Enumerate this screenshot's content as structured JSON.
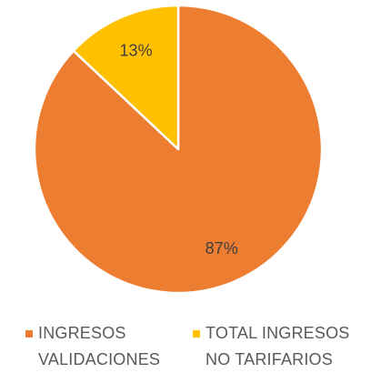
{
  "chart_data": {
    "type": "pie",
    "title": "",
    "slices": [
      {
        "name": "INGRESOS VALIDACIONES",
        "value": 87,
        "label": "87%",
        "color": "#ED7D31"
      },
      {
        "name": "TOTAL INGRESOS NO TARIFARIOS",
        "value": 13,
        "label": "13%",
        "color": "#FFC000"
      }
    ],
    "legend": {
      "position": "bottom",
      "entries": [
        {
          "line1": "INGRESOS",
          "line2": "VALIDACIONES"
        },
        {
          "line1": "TOTAL INGRESOS",
          "line2": "NO TARIFARIOS"
        }
      ]
    }
  }
}
